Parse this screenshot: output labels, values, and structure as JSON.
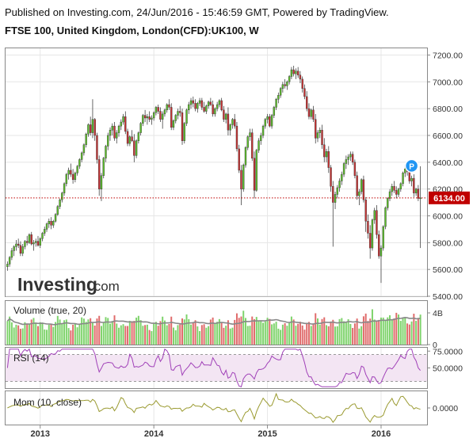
{
  "header": {
    "publish_line": "Published on Investing.com, 24/Jun/2016 - 15:46:59 GMT, Powered by TradingView.",
    "symbol_line": "FTSE 100, United Kingdom, London(CFD):UK100, W"
  },
  "watermark": {
    "brand": "Investing",
    "suffix": ".com"
  },
  "colors": {
    "up": "#5cbf2a",
    "down": "#c83232",
    "wick": "#444444",
    "price_line": "#c00000",
    "volume_up": "#7ed36b",
    "volume_down": "#e06b6b",
    "volume_ma": "#888888",
    "rsi_line": "#a040b8",
    "rsi_band": "#f3e5f3",
    "mom_line": "#9a9a30",
    "marker": "#2196f3"
  },
  "chart_data": [
    {
      "type": "candlestick",
      "name": "price",
      "y_ticks": [
        5400,
        5600,
        5800,
        6000,
        6200,
        6400,
        6600,
        6800,
        7000,
        7200
      ],
      "y_tick_labels": [
        "5400.00",
        "5600.00",
        "5800.00",
        "6000.00",
        "6200.00",
        "6400.00",
        "6600.00",
        "6800.00",
        "7000.00",
        "7200.00"
      ],
      "ylim": [
        5400,
        7250
      ],
      "x_tick_labels": [
        "2013",
        "2014",
        "2015",
        "2016"
      ],
      "last_price": 6134.0,
      "last_price_label": "6134.00",
      "marker_label": "P",
      "marker_value": 6290,
      "points": [
        [
          5620,
          5660,
          5590,
          5640
        ],
        [
          5640,
          5700,
          5620,
          5690
        ],
        [
          5690,
          5760,
          5670,
          5740
        ],
        [
          5740,
          5780,
          5700,
          5770
        ],
        [
          5770,
          5820,
          5740,
          5790
        ],
        [
          5790,
          5830,
          5760,
          5780
        ],
        [
          5780,
          5810,
          5700,
          5720
        ],
        [
          5720,
          5790,
          5700,
          5770
        ],
        [
          5770,
          5820,
          5750,
          5810
        ],
        [
          5810,
          5850,
          5780,
          5800
        ],
        [
          5800,
          5870,
          5790,
          5860
        ],
        [
          5860,
          5880,
          5780,
          5790
        ],
        [
          5790,
          5820,
          5740,
          5800
        ],
        [
          5800,
          5830,
          5770,
          5810
        ],
        [
          5810,
          5850,
          5770,
          5780
        ],
        [
          5780,
          5840,
          5760,
          5830
        ],
        [
          5830,
          5880,
          5810,
          5870
        ],
        [
          5870,
          5920,
          5850,
          5900
        ],
        [
          5900,
          5950,
          5880,
          5940
        ],
        [
          5940,
          5980,
          5910,
          5960
        ],
        [
          5960,
          5990,
          5900,
          5930
        ],
        [
          5930,
          5970,
          5910,
          5960
        ],
        [
          5960,
          6020,
          5950,
          6010
        ],
        [
          6010,
          6080,
          6000,
          6070
        ],
        [
          6070,
          6130,
          6050,
          6120
        ],
        [
          6120,
          6180,
          6100,
          6170
        ],
        [
          6170,
          6250,
          6150,
          6240
        ],
        [
          6240,
          6320,
          6220,
          6310
        ],
        [
          6310,
          6360,
          6270,
          6340
        ],
        [
          6340,
          6390,
          6290,
          6310
        ],
        [
          6310,
          6350,
          6240,
          6270
        ],
        [
          6270,
          6330,
          6250,
          6320
        ],
        [
          6320,
          6380,
          6300,
          6370
        ],
        [
          6370,
          6430,
          6350,
          6420
        ],
        [
          6420,
          6480,
          6400,
          6470
        ],
        [
          6470,
          6540,
          6450,
          6530
        ],
        [
          6530,
          6620,
          6510,
          6610
        ],
        [
          6610,
          6690,
          6590,
          6680
        ],
        [
          6680,
          6740,
          6600,
          6620
        ],
        [
          6620,
          6870,
          6580,
          6720
        ],
        [
          6720,
          6730,
          6560,
          6600
        ],
        [
          6600,
          6620,
          6390,
          6420
        ],
        [
          6420,
          6450,
          6150,
          6200
        ],
        [
          6200,
          6320,
          6110,
          6300
        ],
        [
          6300,
          6440,
          6280,
          6430
        ],
        [
          6430,
          6530,
          6400,
          6520
        ],
        [
          6520,
          6620,
          6490,
          6600
        ],
        [
          6600,
          6660,
          6560,
          6640
        ],
        [
          6640,
          6690,
          6600,
          6670
        ],
        [
          6670,
          6700,
          6560,
          6580
        ],
        [
          6580,
          6640,
          6540,
          6620
        ],
        [
          6620,
          6680,
          6590,
          6670
        ],
        [
          6670,
          6720,
          6640,
          6700
        ],
        [
          6700,
          6760,
          6680,
          6740
        ],
        [
          6740,
          6780,
          6610,
          6630
        ],
        [
          6630,
          6650,
          6520,
          6540
        ],
        [
          6540,
          6600,
          6520,
          6590
        ],
        [
          6590,
          6640,
          6550,
          6560
        ],
        [
          6560,
          6610,
          6400,
          6450
        ],
        [
          6450,
          6570,
          6430,
          6560
        ],
        [
          6560,
          6630,
          6540,
          6620
        ],
        [
          6620,
          6700,
          6600,
          6690
        ],
        [
          6690,
          6760,
          6670,
          6750
        ],
        [
          6750,
          6790,
          6700,
          6730
        ],
        [
          6730,
          6760,
          6680,
          6740
        ],
        [
          6740,
          6780,
          6700,
          6720
        ],
        [
          6720,
          6750,
          6680,
          6730
        ],
        [
          6730,
          6780,
          6710,
          6770
        ],
        [
          6770,
          6820,
          6750,
          6810
        ],
        [
          6810,
          6830,
          6760,
          6780
        ],
        [
          6780,
          6810,
          6700,
          6720
        ],
        [
          6720,
          6780,
          6650,
          6760
        ],
        [
          6760,
          6800,
          6740,
          6790
        ],
        [
          6790,
          6840,
          6770,
          6830
        ],
        [
          6830,
          6870,
          6790,
          6810
        ],
        [
          6810,
          6840,
          6640,
          6660
        ],
        [
          6660,
          6720,
          6640,
          6710
        ],
        [
          6710,
          6760,
          6690,
          6750
        ],
        [
          6750,
          6800,
          6720,
          6780
        ],
        [
          6780,
          6820,
          6740,
          6770
        ],
        [
          6770,
          6800,
          6530,
          6560
        ],
        [
          6560,
          6700,
          6540,
          6690
        ],
        [
          6690,
          6800,
          6670,
          6790
        ],
        [
          6790,
          6850,
          6760,
          6830
        ],
        [
          6830,
          6880,
          6800,
          6860
        ],
        [
          6860,
          6890,
          6810,
          6840
        ],
        [
          6840,
          6870,
          6780,
          6800
        ],
        [
          6800,
          6850,
          6770,
          6840
        ],
        [
          6840,
          6880,
          6820,
          6860
        ],
        [
          6860,
          6880,
          6790,
          6810
        ],
        [
          6810,
          6850,
          6770,
          6780
        ],
        [
          6780,
          6830,
          6760,
          6820
        ],
        [
          6820,
          6860,
          6800,
          6850
        ],
        [
          6850,
          6880,
          6820,
          6830
        ],
        [
          6830,
          6860,
          6740,
          6760
        ],
        [
          6760,
          6810,
          6740,
          6800
        ],
        [
          6800,
          6850,
          6780,
          6830
        ],
        [
          6830,
          6870,
          6810,
          6860
        ],
        [
          6860,
          6880,
          6780,
          6790
        ],
        [
          6790,
          6820,
          6700,
          6720
        ],
        [
          6720,
          6770,
          6690,
          6760
        ],
        [
          6760,
          6810,
          6600,
          6640
        ],
        [
          6640,
          6690,
          6600,
          6680
        ],
        [
          6680,
          6730,
          6650,
          6720
        ],
        [
          6720,
          6760,
          6650,
          6670
        ],
        [
          6670,
          6700,
          6480,
          6500
        ],
        [
          6500,
          6530,
          6320,
          6340
        ],
        [
          6340,
          6380,
          6080,
          6200
        ],
        [
          6200,
          6390,
          6180,
          6380
        ],
        [
          6380,
          6520,
          6360,
          6510
        ],
        [
          6510,
          6600,
          6490,
          6590
        ],
        [
          6590,
          6650,
          6560,
          6620
        ],
        [
          6620,
          6650,
          6410,
          6430
        ],
        [
          6430,
          6480,
          6130,
          6190
        ],
        [
          6190,
          6500,
          6180,
          6490
        ],
        [
          6490,
          6580,
          6470,
          6560
        ],
        [
          6560,
          6620,
          6530,
          6600
        ],
        [
          6600,
          6680,
          6580,
          6670
        ],
        [
          6670,
          6730,
          6650,
          6720
        ],
        [
          6720,
          6760,
          6690,
          6740
        ],
        [
          6740,
          6760,
          6660,
          6670
        ],
        [
          6670,
          6760,
          6650,
          6750
        ],
        [
          6750,
          6820,
          6730,
          6810
        ],
        [
          6810,
          6880,
          6790,
          6870
        ],
        [
          6870,
          6920,
          6840,
          6900
        ],
        [
          6900,
          6960,
          6880,
          6950
        ],
        [
          6950,
          7000,
          6920,
          6980
        ],
        [
          6980,
          7020,
          6950,
          6970
        ],
        [
          6970,
          7010,
          6940,
          7000
        ],
        [
          7000,
          7050,
          6980,
          7040
        ],
        [
          7040,
          7110,
          7020,
          7090
        ],
        [
          7090,
          7120,
          7040,
          7060
        ],
        [
          7060,
          7100,
          7020,
          7080
        ],
        [
          7080,
          7110,
          7030,
          7050
        ],
        [
          7050,
          7080,
          6990,
          7020
        ],
        [
          7020,
          7040,
          6920,
          6950
        ],
        [
          6950,
          6980,
          6870,
          6890
        ],
        [
          6890,
          6930,
          6780,
          6800
        ],
        [
          6800,
          6840,
          6720,
          6740
        ],
        [
          6740,
          6800,
          6720,
          6790
        ],
        [
          6790,
          6820,
          6700,
          6720
        ],
        [
          6720,
          6760,
          6540,
          6580
        ],
        [
          6580,
          6640,
          6550,
          6620
        ],
        [
          6620,
          6660,
          6580,
          6640
        ],
        [
          6640,
          6680,
          6500,
          6530
        ],
        [
          6530,
          6580,
          6400,
          6440
        ],
        [
          6440,
          6500,
          6400,
          6480
        ],
        [
          6480,
          6520,
          6320,
          6360
        ],
        [
          6360,
          6380,
          6180,
          6220
        ],
        [
          6220,
          6260,
          5770,
          6100
        ],
        [
          6100,
          6180,
          6050,
          6160
        ],
        [
          6160,
          6230,
          6130,
          6210
        ],
        [
          6210,
          6280,
          6180,
          6260
        ],
        [
          6260,
          6330,
          6230,
          6310
        ],
        [
          6310,
          6400,
          6290,
          6390
        ],
        [
          6390,
          6450,
          6350,
          6420
        ],
        [
          6420,
          6460,
          6380,
          6440
        ],
        [
          6440,
          6480,
          6410,
          6460
        ],
        [
          6460,
          6480,
          6380,
          6400
        ],
        [
          6400,
          6420,
          6280,
          6300
        ],
        [
          6300,
          6330,
          6120,
          6150
        ],
        [
          6150,
          6200,
          6080,
          6180
        ],
        [
          6180,
          6280,
          6160,
          6270
        ],
        [
          6270,
          6300,
          6100,
          6120
        ],
        [
          6120,
          6140,
          5880,
          5960
        ],
        [
          5960,
          6010,
          5830,
          5870
        ],
        [
          5870,
          5930,
          5680,
          5760
        ],
        [
          5760,
          5980,
          5740,
          5970
        ],
        [
          5970,
          6060,
          5940,
          6040
        ],
        [
          6040,
          6080,
          5830,
          5860
        ],
        [
          5860,
          5890,
          5680,
          5700
        ],
        [
          5700,
          5780,
          5500,
          5760
        ],
        [
          5760,
          5930,
          5740,
          5920
        ],
        [
          5920,
          6070,
          5900,
          6060
        ],
        [
          6060,
          6140,
          6040,
          6130
        ],
        [
          6130,
          6200,
          6110,
          6180
        ],
        [
          6180,
          6240,
          6150,
          6220
        ],
        [
          6220,
          6260,
          6170,
          6190
        ],
        [
          6190,
          6220,
          6130,
          6160
        ],
        [
          6160,
          6210,
          6140,
          6200
        ],
        [
          6200,
          6250,
          6180,
          6240
        ],
        [
          6240,
          6330,
          6220,
          6320
        ],
        [
          6320,
          6380,
          6290,
          6350
        ],
        [
          6350,
          6400,
          6300,
          6330
        ],
        [
          6330,
          6350,
          6240,
          6260
        ],
        [
          6260,
          6300,
          6220,
          6280
        ],
        [
          6280,
          6310,
          6140,
          6170
        ],
        [
          6170,
          6210,
          6150,
          6200
        ],
        [
          6200,
          6230,
          6110,
          6130
        ],
        [
          6130,
          6370,
          5760,
          6134
        ]
      ]
    },
    {
      "type": "bar",
      "name": "volume",
      "title": "Volume (true, 20)",
      "y_ticks": [
        0,
        4000000000
      ],
      "y_tick_labels": [
        "0",
        "4B"
      ],
      "ylim": [
        0,
        5500000000
      ]
    },
    {
      "type": "line",
      "name": "rsi",
      "title": "RSI (14)",
      "y_ticks": [
        75,
        50
      ],
      "y_tick_labels": [
        "75.0000",
        "50.0000"
      ],
      "band": [
        30,
        70
      ],
      "ylim": [
        20,
        80
      ]
    },
    {
      "type": "line",
      "name": "momentum",
      "title": "Mom (10, close)",
      "y_ticks": [
        0
      ],
      "y_tick_labels": [
        "0.0000"
      ],
      "ylim": [
        -800,
        800
      ]
    }
  ]
}
